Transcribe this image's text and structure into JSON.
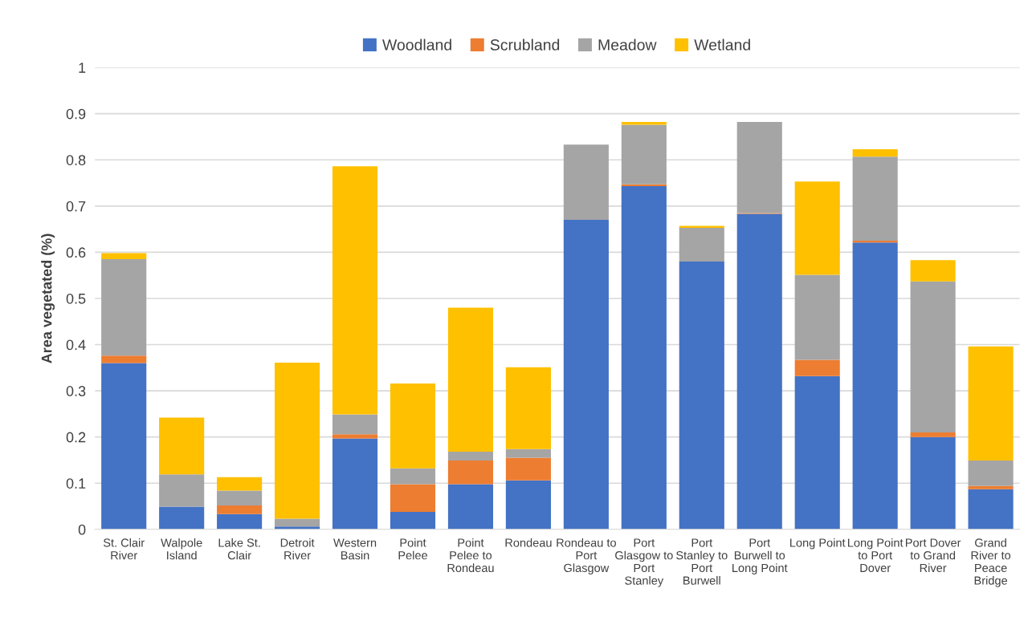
{
  "chart_data": {
    "type": "bar",
    "stacked": true,
    "ylabel": "Area vegetated (%)",
    "categories": [
      "St. Clair River",
      "Walpole Island",
      "Lake St. Clair",
      "Detroit River",
      "Western Basin",
      "Point Pelee",
      "Point Pelee to Rondeau",
      "Rondeau",
      "Rondeau to Port Glasgow",
      "Port Glasgow to Port Stanley",
      "Port Stanley to Port Burwell",
      "Port Burwell to Long Point",
      "Long Point",
      "Long Point to Port Dover",
      "Port Dover to Grand River",
      "Grand River to Peace Bridge"
    ],
    "series": [
      {
        "name": "Woodland",
        "color": "#4472c4",
        "values": [
          0.36,
          0.049,
          0.033,
          0.006,
          0.197,
          0.038,
          0.098,
          0.106,
          0.67,
          0.743,
          0.58,
          0.683,
          0.332,
          0.621,
          0.2,
          0.087
        ]
      },
      {
        "name": "Scrubland",
        "color": "#ed7d31",
        "values": [
          0.016,
          0,
          0.019,
          0,
          0.009,
          0.06,
          0.051,
          0.049,
          0,
          0.004,
          0,
          0.002,
          0.035,
          0.004,
          0.01,
          0.007
        ]
      },
      {
        "name": "Meadow",
        "color": "#a5a5a5",
        "values": [
          0.209,
          0.07,
          0.032,
          0.017,
          0.043,
          0.034,
          0.019,
          0.019,
          0.163,
          0.129,
          0.073,
          0.197,
          0.184,
          0.182,
          0.327,
          0.055
        ]
      },
      {
        "name": "Wetland",
        "color": "#ffc000",
        "values": [
          0.013,
          0.123,
          0.029,
          0.338,
          0.537,
          0.184,
          0.312,
          0.177,
          0,
          0.006,
          0.004,
          0,
          0.202,
          0.016,
          0.046,
          0.247
        ]
      }
    ],
    "ylim": [
      0,
      1
    ],
    "yticks": [
      0,
      0.1,
      0.2,
      0.3,
      0.4,
      0.5,
      0.6,
      0.7,
      0.8,
      0.9,
      1
    ],
    "grid": "y",
    "legend": "top"
  }
}
